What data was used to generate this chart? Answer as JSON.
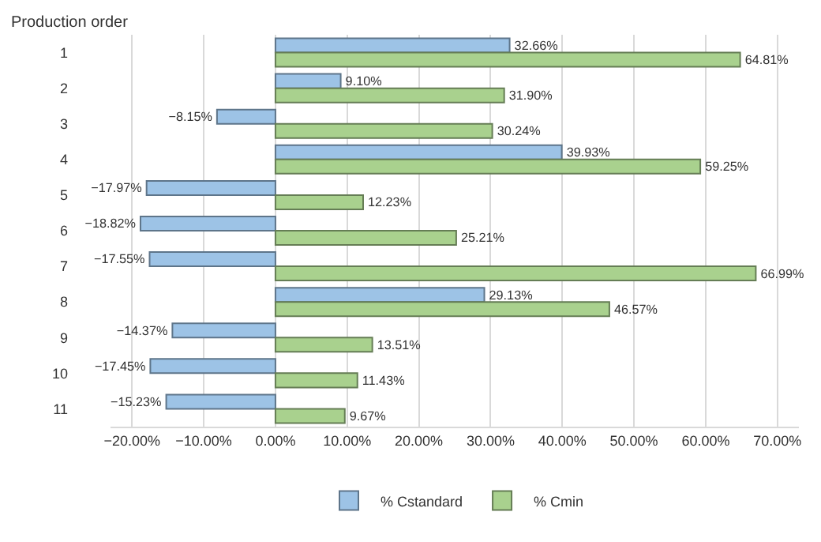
{
  "chart_data": {
    "type": "bar",
    "orientation": "horizontal",
    "ylabel": "Production order",
    "categories": [
      "1",
      "2",
      "3",
      "4",
      "5",
      "6",
      "7",
      "8",
      "9",
      "10",
      "11"
    ],
    "series": [
      {
        "name": "% Cstandard",
        "color": "#9dc3e6",
        "values": [
          32.66,
          9.1,
          -8.15,
          39.93,
          -17.97,
          -18.82,
          -17.55,
          29.13,
          -14.37,
          -17.45,
          -15.23
        ],
        "value_labels": [
          "32.66%",
          "9.10%",
          "−8.15%",
          "39.93%",
          "−17.97%",
          "−18.82%",
          "−17.55%",
          "29.13%",
          "−14.37%",
          "−17.45%",
          "−15.23%"
        ]
      },
      {
        "name": "% Cmin",
        "color": "#a9d18e",
        "values": [
          64.81,
          31.9,
          30.24,
          59.25,
          12.23,
          25.21,
          66.99,
          46.57,
          13.51,
          11.43,
          9.67
        ],
        "value_labels": [
          "64.81%",
          "31.90%",
          "30.24%",
          "59.25%",
          "12.23%",
          "25.21%",
          "66.99%",
          "46.57%",
          "13.51%",
          "11.43%",
          "9.67%"
        ]
      }
    ],
    "xlim": [
      -23,
      73
    ],
    "xticks": [
      {
        "value": -20,
        "label": "−20.00%"
      },
      {
        "value": -10,
        "label": "−10.00%"
      },
      {
        "value": 0,
        "label": "0.00%"
      },
      {
        "value": 10,
        "label": "10.00%"
      },
      {
        "value": 20,
        "label": "20.00%"
      },
      {
        "value": 30,
        "label": "30.00%"
      },
      {
        "value": 40,
        "label": "40.00%"
      },
      {
        "value": 50,
        "label": "50.00%"
      },
      {
        "value": 60,
        "label": "60.00%"
      },
      {
        "value": 70,
        "label": "70.00%"
      }
    ],
    "grid": "x",
    "legend": "bottom"
  }
}
